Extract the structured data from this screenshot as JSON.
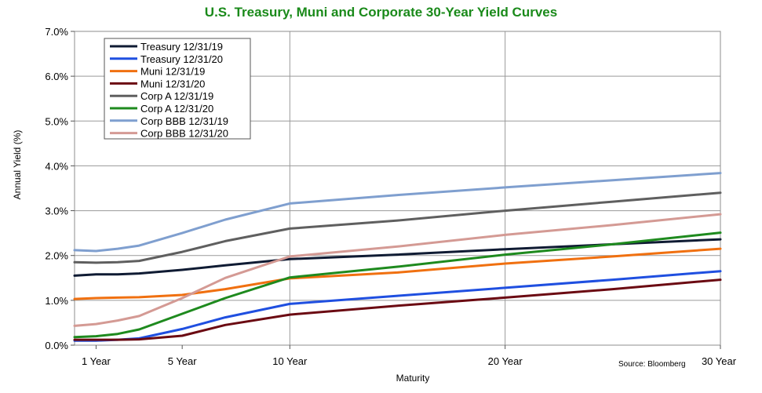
{
  "chart_data": {
    "type": "line",
    "title": "U.S. Treasury, Muni and Corporate 30-Year Yield Curves",
    "xlabel": "Maturity",
    "ylabel": "Annual Yield (%)",
    "source": "Source: Bloomberg",
    "xlim": [
      0,
      30
    ],
    "ylim": [
      0,
      7
    ],
    "grid": true,
    "legend_position": "top-left",
    "x_ticks": [
      {
        "value": 1,
        "label": "1 Year"
      },
      {
        "value": 5,
        "label": "5 Year"
      },
      {
        "value": 10,
        "label": "10 Year"
      },
      {
        "value": 20,
        "label": "20 Year"
      },
      {
        "value": 30,
        "label": "30 Year"
      }
    ],
    "y_ticks": [
      {
        "value": 0,
        "label": "0.0%"
      },
      {
        "value": 1,
        "label": "1.0%"
      },
      {
        "value": 2,
        "label": "2.0%"
      },
      {
        "value": 3,
        "label": "3.0%"
      },
      {
        "value": 4,
        "label": "4.0%"
      },
      {
        "value": 5,
        "label": "5.0%"
      },
      {
        "value": 6,
        "label": "6.0%"
      },
      {
        "value": 7,
        "label": "7.0%"
      }
    ],
    "x": [
      0,
      1,
      2,
      3,
      5,
      7,
      10,
      15,
      20,
      25,
      30
    ],
    "series": [
      {
        "name": "Treasury 12/31/19",
        "color": "#0f1b33",
        "values": [
          1.55,
          1.58,
          1.58,
          1.6,
          1.68,
          1.78,
          1.92,
          2.02,
          2.14,
          2.25,
          2.36
        ]
      },
      {
        "name": "Treasury 12/31/20",
        "color": "#1f4fe0",
        "values": [
          0.1,
          0.1,
          0.12,
          0.15,
          0.36,
          0.62,
          0.92,
          1.1,
          1.28,
          1.46,
          1.65
        ]
      },
      {
        "name": "Muni 12/31/19",
        "color": "#f07010",
        "values": [
          1.03,
          1.05,
          1.06,
          1.07,
          1.12,
          1.25,
          1.49,
          1.62,
          1.82,
          1.98,
          2.15
        ]
      },
      {
        "name": "Muni 12/31/20",
        "color": "#6b0a12",
        "values": [
          0.12,
          0.12,
          0.12,
          0.13,
          0.21,
          0.45,
          0.68,
          0.88,
          1.06,
          1.25,
          1.46
        ]
      },
      {
        "name": "Corp A 12/31/19",
        "color": "#5f5f5f",
        "values": [
          1.85,
          1.84,
          1.85,
          1.88,
          2.08,
          2.32,
          2.6,
          2.78,
          3.0,
          3.2,
          3.4
        ]
      },
      {
        "name": "Corp A 12/31/20",
        "color": "#1e8a1e",
        "values": [
          0.18,
          0.2,
          0.25,
          0.35,
          0.7,
          1.05,
          1.51,
          1.75,
          2.02,
          2.25,
          2.51
        ]
      },
      {
        "name": "Corp BBB 12/31/19",
        "color": "#7f9fcf",
        "values": [
          2.12,
          2.1,
          2.15,
          2.22,
          2.5,
          2.8,
          3.16,
          3.35,
          3.52,
          3.68,
          3.84
        ]
      },
      {
        "name": "Corp BBB 12/31/20",
        "color": "#d49a94",
        "values": [
          0.43,
          0.47,
          0.55,
          0.65,
          1.05,
          1.5,
          1.98,
          2.2,
          2.46,
          2.68,
          2.92
        ]
      }
    ]
  }
}
